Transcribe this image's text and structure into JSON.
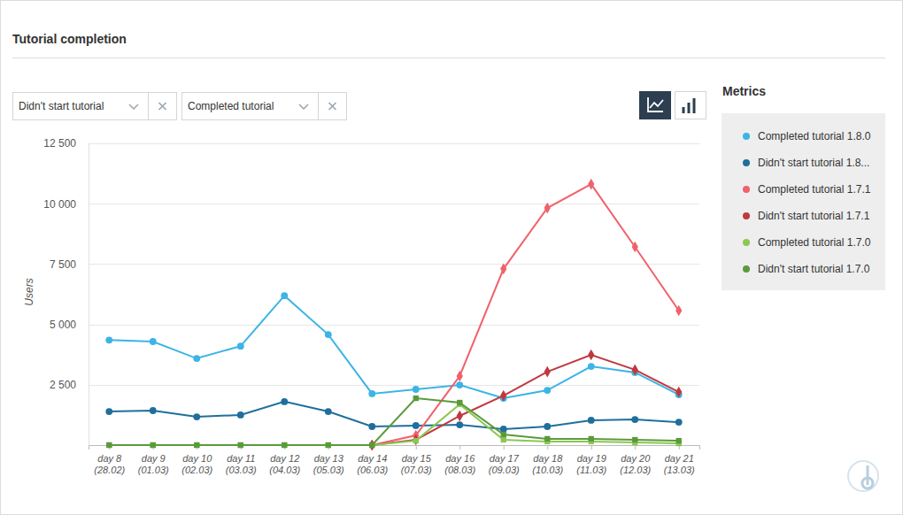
{
  "chart_data": {
    "type": "line",
    "title": "Tutorial completion",
    "y_label": "Users",
    "categories": [
      "day 8 (28.02)",
      "day 9 (01.03)",
      "day 10 (02.03)",
      "day 11 (03.03)",
      "day 12 (04.03)",
      "day 13 (05.03)",
      "day 14 (06.03)",
      "day 15 (07.03)",
      "day 16 (08.03)",
      "day 17 (09.03)",
      "day 18 (10.03)",
      "day 19 (11.03)",
      "day 20 (12.03)",
      "day 21 (13.03)"
    ],
    "series": [
      {
        "name": "Completed tutorial 1.8.0",
        "color": "#3cb4e6",
        "marker": "circle",
        "values": [
          4350,
          4290,
          3590,
          4100,
          6190,
          4580,
          2130,
          2310,
          2490,
          1940,
          2270,
          3260,
          3010,
          2090
        ]
      },
      {
        "name": "Didn't start tutorial 1.8...",
        "color": "#1f6f9c",
        "marker": "circle",
        "values": [
          1390,
          1430,
          1170,
          1250,
          1800,
          1390,
          770,
          810,
          840,
          660,
          770,
          1030,
          1060,
          950
        ]
      },
      {
        "name": "Completed tutorial 1.7.1",
        "color": "#f0626b",
        "marker": "diamond",
        "values": [
          null,
          null,
          null,
          null,
          null,
          null,
          0,
          400,
          2860,
          7300,
          9820,
          10810,
          8210,
          5570
        ]
      },
      {
        "name": "Didn't start tutorial 1.7.1",
        "color": "#c0393f",
        "marker": "diamond",
        "values": [
          null,
          null,
          null,
          null,
          null,
          null,
          0,
          220,
          1210,
          2050,
          3040,
          3740,
          3120,
          2200
        ]
      },
      {
        "name": "Completed tutorial 1.7.0",
        "color": "#8cc850",
        "marker": "square",
        "values": [
          0,
          0,
          0,
          0,
          0,
          0,
          0,
          180,
          1690,
          220,
          150,
          150,
          110,
          70
        ]
      },
      {
        "name": "Didn't start tutorial 1.7.0",
        "color": "#5a9a3c",
        "marker": "square",
        "values": [
          0,
          0,
          0,
          0,
          0,
          0,
          0,
          1940,
          1760,
          440,
          260,
          260,
          220,
          180
        ]
      }
    ],
    "ylim": [
      0,
      12500
    ],
    "yticks": [
      {
        "value": 2500,
        "label": "2 500"
      },
      {
        "value": 5000,
        "label": "5 000"
      },
      {
        "value": 7500,
        "label": "7 500"
      },
      {
        "value": 10000,
        "label": "10 000"
      },
      {
        "value": 12500,
        "label": "12 500"
      }
    ],
    "grid": true,
    "legend": "right"
  },
  "page": {
    "filters": [
      "Didn't start tutorial",
      "Completed tutorial"
    ],
    "legend_title": "Metrics"
  }
}
